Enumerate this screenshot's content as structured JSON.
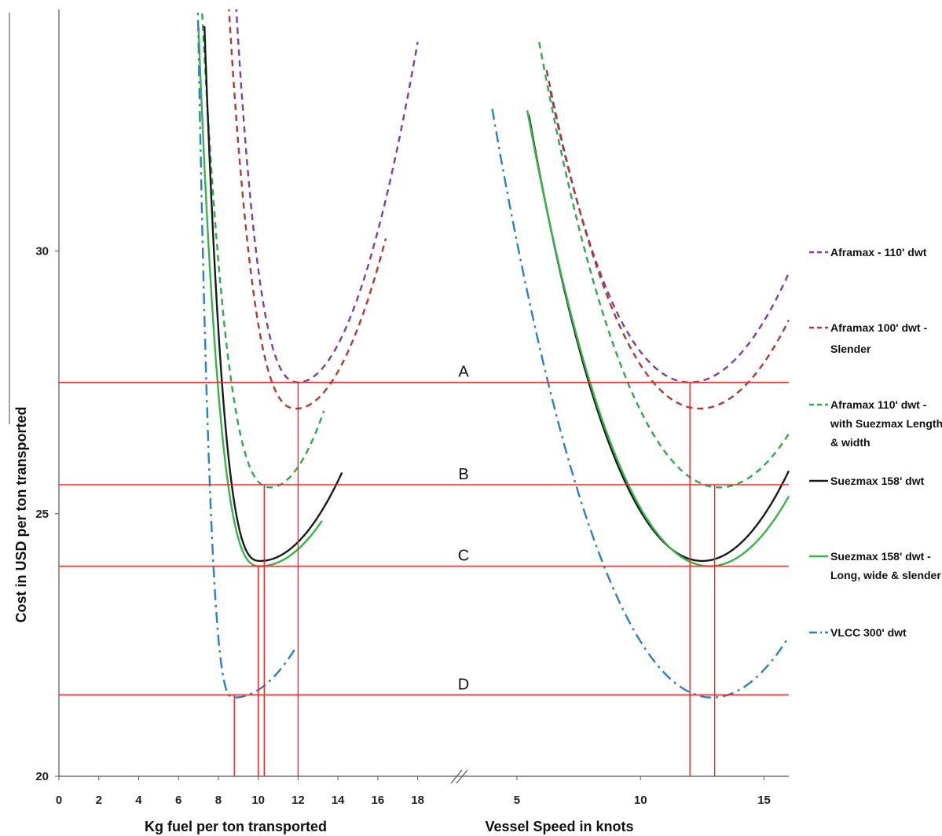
{
  "chart_data": {
    "type": "line",
    "xlabel_left": "Kg fuel per ton transported",
    "xlabel_right": "Vessel Speed in knots",
    "ylabel": "Cost in USD per ton transported",
    "ylim": [
      20,
      34.6
    ],
    "x_left_ticks": [
      "0",
      "2",
      "4",
      "6",
      "8",
      "10",
      "12",
      "14",
      "16",
      "18"
    ],
    "x_left_range": [
      0,
      19
    ],
    "x_right_ticks": [
      "5",
      "10",
      "15"
    ],
    "x_right_range": [
      3.0,
      16.0
    ],
    "y_ticks": [
      "20",
      "25",
      "30"
    ],
    "grid": false,
    "legend_position": "right",
    "series": [
      {
        "name": "Aframax - 110' dwt",
        "color": "#7b3fa0",
        "dash": "8,6",
        "fuel": {
          "min_x": 12.0,
          "min_y": 27.5,
          "a": 0.18,
          "b": 7.7,
          "x_start": 8.5,
          "x_end": 18.0
        },
        "speed": {
          "min_x": 12.0,
          "min_y": 27.5,
          "a": 0.13,
          "b": 1.4,
          "x_start": 6.35,
          "x_end": 16.0
        }
      },
      {
        "name": "Aframax 100' dwt - Slender",
        "color": "#b03a32",
        "dash": "8,6",
        "fuel": {
          "min_x": 11.9,
          "min_y": 27.0,
          "a": 0.16,
          "b": 8.3,
          "x_start": 8.1,
          "x_end": 16.4
        },
        "speed": {
          "min_x": 12.4,
          "min_y": 27.0,
          "a": 0.13,
          "b": 1.45,
          "x_start": 6.2,
          "x_end": 16.0
        }
      },
      {
        "name": "Aframax 110' dwt - with Suezmax Length & width",
        "color": "#2eaa4a",
        "dash": "8,6",
        "fuel": {
          "min_x": 10.6,
          "min_y": 25.5,
          "a": 0.2,
          "b": 7.2,
          "x_start": 7.1,
          "x_end": 13.3
        },
        "speed": {
          "min_x": 13.2,
          "min_y": 25.5,
          "a": 0.13,
          "b": 1.55,
          "x_start": 5.9,
          "x_end": 16.0
        }
      },
      {
        "name": "Suezmax 158' dwt",
        "color": "#1a1a1a",
        "dash": "",
        "fuel": {
          "min_x": 10.1,
          "min_y": 24.1,
          "a": 0.1,
          "b": 9.4,
          "x_start": 7.3,
          "x_end": 14.2
        },
        "speed": {
          "min_x": 12.5,
          "min_y": 24.1,
          "a": 0.14,
          "b": 1.6,
          "x_start": 5.48,
          "x_end": 16.0
        }
      },
      {
        "name": "Suezmax 158' dwt - Long, wide & slender",
        "color": "#33b54a",
        "dash": "",
        "fuel": {
          "min_x": 10.1,
          "min_y": 24.0,
          "a": 0.09,
          "b": 9.4,
          "x_start": 7.0,
          "x_end": 13.2
        },
        "speed": {
          "min_x": 12.8,
          "min_y": 24.0,
          "a": 0.13,
          "b": 1.6,
          "x_start": 5.42,
          "x_end": 16.0
        }
      },
      {
        "name": "VLCC 300' dwt",
        "color": "#2a7fc9",
        "dash": "14,6,3,6",
        "fuel": {
          "min_x": 8.8,
          "min_y": 21.5,
          "a": 0.1,
          "b": 18.0,
          "x_start": 6.75,
          "x_end": 11.9
        },
        "speed": {
          "min_x": 12.9,
          "min_y": 21.5,
          "a": 0.12,
          "b": 1.7,
          "x_start": 4.0,
          "x_end": 16.0
        }
      }
    ],
    "reference_lines": [
      {
        "label": "A",
        "y": 27.5,
        "fuel_x": [
          12.0
        ],
        "speed_x": [
          12.0
        ]
      },
      {
        "label": "B",
        "y": 25.55,
        "fuel_x": [
          10.3
        ],
        "speed_x": [
          13.0
        ]
      },
      {
        "label": "C",
        "y": 24.0,
        "fuel_x": [
          10.0
        ],
        "speed_x": []
      },
      {
        "label": "D",
        "y": 21.55,
        "fuel_x": [
          8.8
        ],
        "speed_x": []
      }
    ],
    "reference_color": "#ff1f1f"
  }
}
